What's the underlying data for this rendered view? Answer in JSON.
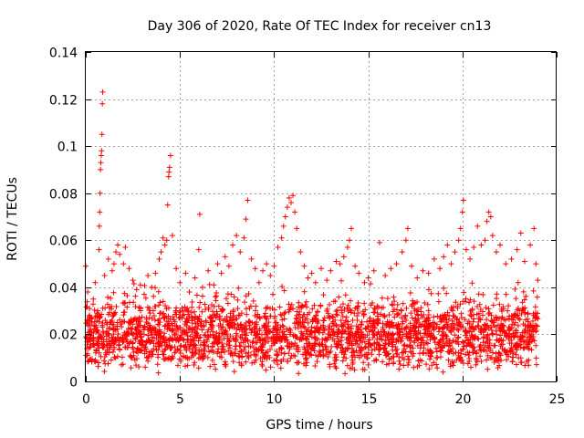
{
  "chart_data": {
    "type": "scatter",
    "title": "Day 306 of 2020, Rate Of TEC Index for receiver cn13",
    "xlabel": "GPS time / hours",
    "ylabel": "ROTI / TECUs",
    "xlim": [
      0,
      25
    ],
    "ylim": [
      0,
      0.14
    ],
    "x_ticks": [
      0,
      5,
      10,
      15,
      20,
      25
    ],
    "x_tick_labels": [
      "0",
      "5",
      "10",
      "15",
      "20",
      "25"
    ],
    "y_ticks": [
      0,
      0.02,
      0.04,
      0.06,
      0.08,
      0.1,
      0.12,
      0.14
    ],
    "y_tick_labels": [
      "0",
      "0.02",
      "0.04",
      "0.06",
      "0.08",
      "0.1",
      "0.12",
      "0.14"
    ],
    "grid": true,
    "marker": "+",
    "color": "#ff0000",
    "series": [
      {
        "name": "ROTI",
        "points": [
          [
            0.0,
            0.049
          ],
          [
            0.1,
            0.038
          ],
          [
            0.2,
            0.031
          ],
          [
            0.3,
            0.027
          ],
          [
            0.4,
            0.035
          ],
          [
            0.5,
            0.042
          ],
          [
            0.6,
            0.029
          ],
          [
            0.7,
            0.056
          ],
          [
            0.72,
            0.066
          ],
          [
            0.74,
            0.072
          ],
          [
            0.76,
            0.08
          ],
          [
            0.78,
            0.09
          ],
          [
            0.8,
            0.093
          ],
          [
            0.82,
            0.096
          ],
          [
            0.84,
            0.098
          ],
          [
            0.86,
            0.105
          ],
          [
            0.88,
            0.118
          ],
          [
            0.9,
            0.123
          ],
          [
            1.0,
            0.045
          ],
          [
            1.2,
            0.052
          ],
          [
            1.4,
            0.047
          ],
          [
            1.5,
            0.05
          ],
          [
            1.6,
            0.055
          ],
          [
            1.7,
            0.058
          ],
          [
            1.8,
            0.054
          ],
          [
            2.0,
            0.05
          ],
          [
            2.1,
            0.057
          ],
          [
            2.3,
            0.048
          ],
          [
            2.5,
            0.043
          ],
          [
            2.7,
            0.039
          ],
          [
            2.9,
            0.041
          ],
          [
            3.1,
            0.037
          ],
          [
            3.3,
            0.045
          ],
          [
            3.5,
            0.04
          ],
          [
            3.7,
            0.046
          ],
          [
            3.9,
            0.052
          ],
          [
            4.0,
            0.055
          ],
          [
            4.1,
            0.061
          ],
          [
            4.2,
            0.058
          ],
          [
            4.3,
            0.06
          ],
          [
            4.35,
            0.075
          ],
          [
            4.4,
            0.087
          ],
          [
            4.42,
            0.089
          ],
          [
            4.45,
            0.091
          ],
          [
            4.5,
            0.096
          ],
          [
            4.6,
            0.062
          ],
          [
            4.8,
            0.048
          ],
          [
            5.0,
            0.042
          ],
          [
            5.3,
            0.046
          ],
          [
            5.5,
            0.038
          ],
          [
            5.8,
            0.044
          ],
          [
            6.0,
            0.056
          ],
          [
            6.05,
            0.071
          ],
          [
            6.2,
            0.04
          ],
          [
            6.5,
            0.047
          ],
          [
            6.8,
            0.041
          ],
          [
            7.0,
            0.05
          ],
          [
            7.2,
            0.046
          ],
          [
            7.4,
            0.053
          ],
          [
            7.6,
            0.049
          ],
          [
            7.8,
            0.058
          ],
          [
            8.0,
            0.062
          ],
          [
            8.2,
            0.055
          ],
          [
            8.4,
            0.061
          ],
          [
            8.5,
            0.069
          ],
          [
            8.6,
            0.077
          ],
          [
            8.8,
            0.052
          ],
          [
            9.0,
            0.048
          ],
          [
            9.2,
            0.042
          ],
          [
            9.4,
            0.047
          ],
          [
            9.6,
            0.05
          ],
          [
            9.8,
            0.045
          ],
          [
            10.0,
            0.049
          ],
          [
            10.2,
            0.057
          ],
          [
            10.4,
            0.061
          ],
          [
            10.5,
            0.066
          ],
          [
            10.6,
            0.07
          ],
          [
            10.7,
            0.074
          ],
          [
            10.8,
            0.078
          ],
          [
            10.9,
            0.076
          ],
          [
            11.0,
            0.079
          ],
          [
            11.1,
            0.072
          ],
          [
            11.2,
            0.065
          ],
          [
            11.4,
            0.055
          ],
          [
            11.6,
            0.049
          ],
          [
            11.8,
            0.044
          ],
          [
            12.0,
            0.046
          ],
          [
            12.2,
            0.042
          ],
          [
            12.5,
            0.048
          ],
          [
            12.8,
            0.043
          ],
          [
            13.0,
            0.047
          ],
          [
            13.3,
            0.051
          ],
          [
            13.5,
            0.05
          ],
          [
            13.7,
            0.053
          ],
          [
            13.9,
            0.057
          ],
          [
            14.0,
            0.06
          ],
          [
            14.1,
            0.065
          ],
          [
            14.3,
            0.049
          ],
          [
            14.5,
            0.046
          ],
          [
            14.8,
            0.042
          ],
          [
            15.0,
            0.044
          ],
          [
            15.3,
            0.047
          ],
          [
            15.6,
            0.059
          ],
          [
            15.9,
            0.045
          ],
          [
            16.2,
            0.048
          ],
          [
            16.5,
            0.05
          ],
          [
            16.8,
            0.055
          ],
          [
            17.0,
            0.06
          ],
          [
            17.1,
            0.065
          ],
          [
            17.3,
            0.049
          ],
          [
            17.6,
            0.044
          ],
          [
            17.9,
            0.047
          ],
          [
            18.2,
            0.046
          ],
          [
            18.5,
            0.052
          ],
          [
            18.8,
            0.048
          ],
          [
            19.0,
            0.053
          ],
          [
            19.2,
            0.058
          ],
          [
            19.4,
            0.05
          ],
          [
            19.6,
            0.055
          ],
          [
            19.8,
            0.06
          ],
          [
            19.9,
            0.065
          ],
          [
            20.0,
            0.072
          ],
          [
            20.05,
            0.077
          ],
          [
            20.2,
            0.056
          ],
          [
            20.4,
            0.052
          ],
          [
            20.6,
            0.057
          ],
          [
            20.8,
            0.066
          ],
          [
            21.0,
            0.058
          ],
          [
            21.2,
            0.06
          ],
          [
            21.3,
            0.068
          ],
          [
            21.4,
            0.072
          ],
          [
            21.5,
            0.07
          ],
          [
            21.6,
            0.062
          ],
          [
            21.8,
            0.055
          ],
          [
            22.0,
            0.058
          ],
          [
            22.3,
            0.05
          ],
          [
            22.6,
            0.052
          ],
          [
            22.9,
            0.056
          ],
          [
            23.1,
            0.063
          ],
          [
            23.3,
            0.051
          ],
          [
            23.6,
            0.058
          ],
          [
            23.8,
            0.065
          ],
          [
            23.9,
            0.05
          ],
          [
            24.0,
            0.043
          ]
        ]
      }
    ],
    "dense_band": {
      "x_range": [
        0,
        24
      ],
      "typical_range": [
        0.003,
        0.04
      ],
      "note": "dense cloud of points between roughly 0.005 and 0.035 TECU across the whole day"
    }
  }
}
